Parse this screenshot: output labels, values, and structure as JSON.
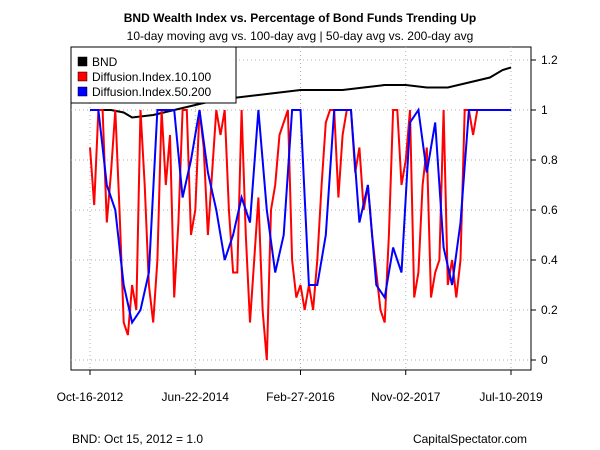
{
  "chart_data": {
    "type": "line",
    "title": "BND Wealth Index vs. Percentage of Bond Funds Trending Up",
    "subtitle": "10-day moving avg vs. 100-day avg | 50-day avg vs. 200-day avg",
    "x_tick_labels": [
      "Oct-16-2012",
      "Jun-22-2014",
      "Feb-27-2016",
      "Nov-02-2017",
      "Jul-10-2019"
    ],
    "y_tick_labels": [
      "0",
      "0.2",
      "0.4",
      "0.6",
      "0.8",
      "1",
      "1.2"
    ],
    "ylim": [
      -0.05,
      1.25
    ],
    "grid": true,
    "legend": {
      "position": "top-left",
      "entries": [
        {
          "name": "BND",
          "color": "#000000"
        },
        {
          "name": "Diffusion.Index.10.100",
          "color": "#ff0000"
        },
        {
          "name": "Diffusion.Index.50.200",
          "color": "#0000ff"
        }
      ]
    },
    "series": [
      {
        "name": "BND",
        "color": "#000000",
        "x": [
          0.0,
          0.05,
          0.08,
          0.1,
          0.15,
          0.2,
          0.25,
          0.3,
          0.35,
          0.4,
          0.45,
          0.5,
          0.55,
          0.6,
          0.65,
          0.7,
          0.75,
          0.8,
          0.85,
          0.9,
          0.95,
          0.98,
          1.0
        ],
        "values": [
          1.0,
          1.0,
          0.99,
          0.97,
          0.98,
          1.0,
          1.02,
          1.04,
          1.05,
          1.06,
          1.07,
          1.08,
          1.08,
          1.08,
          1.09,
          1.1,
          1.1,
          1.09,
          1.09,
          1.11,
          1.13,
          1.16,
          1.17
        ]
      },
      {
        "name": "Diffusion.Index.10.100",
        "color": "#ff0000",
        "x": [
          0.0,
          0.01,
          0.02,
          0.03,
          0.04,
          0.05,
          0.06,
          0.07,
          0.08,
          0.09,
          0.1,
          0.11,
          0.12,
          0.13,
          0.14,
          0.15,
          0.16,
          0.17,
          0.18,
          0.19,
          0.2,
          0.21,
          0.22,
          0.23,
          0.24,
          0.25,
          0.26,
          0.27,
          0.28,
          0.29,
          0.3,
          0.31,
          0.32,
          0.33,
          0.34,
          0.35,
          0.36,
          0.37,
          0.38,
          0.39,
          0.4,
          0.41,
          0.42,
          0.43,
          0.44,
          0.45,
          0.46,
          0.47,
          0.48,
          0.49,
          0.5,
          0.51,
          0.52,
          0.53,
          0.54,
          0.55,
          0.56,
          0.57,
          0.58,
          0.59,
          0.6,
          0.61,
          0.62,
          0.63,
          0.64,
          0.65,
          0.66,
          0.67,
          0.68,
          0.69,
          0.7,
          0.71,
          0.72,
          0.73,
          0.74,
          0.75,
          0.76,
          0.77,
          0.78,
          0.79,
          0.8,
          0.81,
          0.82,
          0.83,
          0.84,
          0.85,
          0.86,
          0.87,
          0.88,
          0.89,
          0.9,
          0.91,
          0.92,
          0.93,
          0.94,
          0.95,
          0.96,
          0.97,
          1.0
        ],
        "values": [
          0.85,
          0.62,
          1.0,
          1.0,
          0.55,
          0.75,
          1.0,
          0.6,
          0.15,
          0.1,
          0.3,
          0.2,
          1.0,
          0.7,
          0.3,
          0.15,
          0.4,
          1.0,
          0.7,
          0.9,
          0.25,
          0.55,
          1.0,
          1.0,
          0.5,
          0.6,
          1.0,
          0.85,
          0.5,
          0.75,
          1.0,
          0.9,
          1.0,
          0.6,
          0.35,
          0.35,
          1.0,
          0.5,
          0.15,
          0.4,
          0.65,
          0.2,
          0.0,
          0.6,
          0.7,
          0.9,
          0.95,
          1.0,
          0.4,
          0.25,
          0.3,
          0.2,
          0.3,
          0.2,
          0.4,
          0.7,
          0.95,
          1.0,
          1.0,
          0.65,
          0.9,
          1.0,
          1.0,
          0.75,
          0.85,
          0.6,
          0.7,
          0.5,
          0.35,
          0.2,
          0.15,
          0.5,
          1.0,
          1.0,
          0.7,
          0.8,
          1.0,
          0.25,
          0.35,
          0.7,
          0.85,
          0.25,
          0.35,
          0.4,
          1.0,
          0.3,
          0.4,
          0.25,
          0.4,
          1.0,
          1.0,
          0.9,
          1.0,
          1.0,
          1.0,
          1.0,
          1.0,
          1.0,
          1.0
        ]
      },
      {
        "name": "Diffusion.Index.50.200",
        "color": "#0000ff",
        "x": [
          0.0,
          0.02,
          0.04,
          0.06,
          0.08,
          0.1,
          0.12,
          0.14,
          0.16,
          0.18,
          0.2,
          0.22,
          0.24,
          0.26,
          0.28,
          0.3,
          0.32,
          0.34,
          0.36,
          0.38,
          0.4,
          0.42,
          0.44,
          0.46,
          0.48,
          0.5,
          0.52,
          0.54,
          0.56,
          0.58,
          0.6,
          0.62,
          0.64,
          0.66,
          0.68,
          0.7,
          0.72,
          0.74,
          0.76,
          0.78,
          0.8,
          0.82,
          0.84,
          0.86,
          0.88,
          0.9,
          0.92,
          0.94,
          1.0
        ],
        "values": [
          1.0,
          1.0,
          0.7,
          0.6,
          0.3,
          0.15,
          0.2,
          0.35,
          1.0,
          1.0,
          1.0,
          0.65,
          0.8,
          1.0,
          0.75,
          0.6,
          0.4,
          0.5,
          0.65,
          0.55,
          1.0,
          0.6,
          0.35,
          0.5,
          1.0,
          1.0,
          0.3,
          0.3,
          0.5,
          1.0,
          1.0,
          1.0,
          0.55,
          0.7,
          0.3,
          0.25,
          0.45,
          0.35,
          0.95,
          1.0,
          0.75,
          0.95,
          0.45,
          0.3,
          0.55,
          1.0,
          1.0,
          1.0,
          1.0
        ]
      }
    ]
  },
  "footnote_left": "BND: Oct 15, 2012 = 1.0",
  "footnote_right": "CapitalSpectator.com"
}
